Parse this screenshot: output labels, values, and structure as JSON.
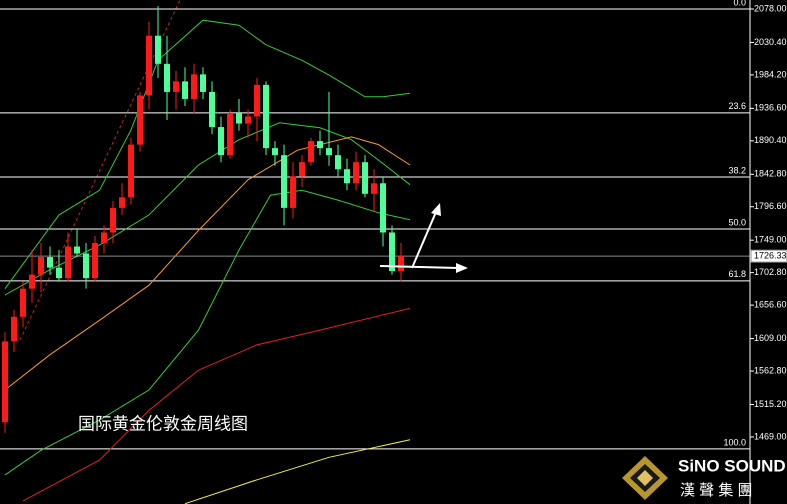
{
  "chart_data": {
    "type": "candlestick",
    "title": "国际黄金伦敦金周线图",
    "ylim": [
      1373.6,
      2090.8
    ],
    "yticks": [
      {
        "value": 2078,
        "label": "2078.00"
      },
      {
        "value": 2030.4,
        "label": "2030.40"
      },
      {
        "value": 1984.2,
        "label": "1984.20"
      },
      {
        "value": 1936.6,
        "label": "1936.60"
      },
      {
        "value": 1890.4,
        "label": "1890.40"
      },
      {
        "value": 1842.8,
        "label": "1842.80"
      },
      {
        "value": 1796.6,
        "label": "1796.60"
      },
      {
        "value": 1749,
        "label": "1749.00"
      },
      {
        "value": 1702.8,
        "label": "1702.80"
      },
      {
        "value": 1656.6,
        "label": "1656.60"
      },
      {
        "value": 1609,
        "label": "1609.00"
      },
      {
        "value": 1562.8,
        "label": "1562.80"
      },
      {
        "value": 1515.2,
        "label": "1515.20"
      },
      {
        "value": 1469,
        "label": "1469.00"
      }
    ],
    "up_color": "#ff1a1a",
    "down_color": "#4dff99",
    "open": [
      1490,
      1605,
      1640,
      1680,
      1700,
      1725,
      1710,
      1695,
      1740,
      1730,
      1695,
      1745,
      1760,
      1795,
      1810,
      1885,
      1955,
      2040,
      2000,
      1960,
      1975,
      1950,
      1985,
      1960,
      1910,
      1870,
      1930,
      1915,
      1925,
      1970,
      1880,
      1870,
      1795,
      1840,
      1860,
      1890,
      1880,
      1870,
      1850,
      1830,
      1860,
      1815,
      1830,
      1760,
      1705
    ],
    "high": [
      1618,
      1650,
      1690,
      1735,
      1745,
      1740,
      1735,
      1760,
      1765,
      1745,
      1755,
      1770,
      1805,
      1830,
      1895,
      1960,
      2060,
      2082,
      2040,
      1990,
      1995,
      2000,
      1995,
      1975,
      1925,
      1935,
      1950,
      1935,
      1980,
      1975,
      1890,
      1885,
      1860,
      1870,
      1895,
      1905,
      1960,
      1885,
      1865,
      1875,
      1870,
      1850,
      1840,
      1770,
      1745
    ],
    "low": [
      1475,
      1590,
      1625,
      1660,
      1675,
      1700,
      1690,
      1690,
      1725,
      1680,
      1690,
      1730,
      1745,
      1785,
      1800,
      1875,
      1935,
      1980,
      1920,
      1935,
      1940,
      1930,
      1950,
      1900,
      1860,
      1865,
      1905,
      1895,
      1890,
      1870,
      1855,
      1770,
      1780,
      1825,
      1855,
      1870,
      1855,
      1840,
      1820,
      1820,
      1810,
      1790,
      1740,
      1700,
      1690
    ],
    "close": [
      1605,
      1640,
      1680,
      1700,
      1725,
      1710,
      1695,
      1740,
      1730,
      1695,
      1745,
      1760,
      1795,
      1810,
      1885,
      1955,
      2040,
      2000,
      1960,
      1975,
      1950,
      1985,
      1960,
      1910,
      1870,
      1930,
      1915,
      1925,
      1970,
      1880,
      1870,
      1795,
      1840,
      1860,
      1890,
      1880,
      1870,
      1850,
      1830,
      1860,
      1815,
      1830,
      1760,
      1705,
      1726.33
    ],
    "last_price": 1726.33,
    "lines": [
      {
        "color": "#33cc33",
        "x": [
          0,
          6,
          10.5,
          14,
          17,
          22,
          26,
          29,
          33,
          36,
          40,
          42,
          45
        ],
        "values": [
          1680,
          1785,
          1820,
          1906,
          2005,
          2062,
          2055,
          2027,
          2005,
          1984,
          1953,
          1953,
          1958
        ]
      },
      {
        "color": "#33cc33",
        "x": [
          0,
          5,
          10.5,
          16,
          21.5,
          26,
          30.5,
          35,
          38.5,
          41.5,
          45
        ],
        "values": [
          1671,
          1707,
          1742,
          1785,
          1856,
          1892,
          1916,
          1909,
          1892,
          1863,
          1828
        ]
      },
      {
        "color": "#33cc33",
        "x": [
          0,
          4,
          10.5,
          16,
          21.5,
          26,
          29.5,
          33,
          37,
          41.5,
          45
        ],
        "values": [
          1415,
          1450,
          1493,
          1536,
          1621,
          1735,
          1813,
          1820,
          1806,
          1788,
          1778
        ]
      },
      {
        "color": "#ff9922",
        "x": [
          0,
          5,
          10.5,
          16,
          21.5,
          27,
          32.5,
          38.5,
          41.5,
          45
        ],
        "values": [
          1536,
          1586,
          1635,
          1685,
          1763,
          1835,
          1877,
          1896,
          1885,
          1856
        ]
      },
      {
        "color": "#e02020",
        "x": [
          2,
          10.5,
          16,
          21.5,
          28,
          35,
          45
        ],
        "values": [
          1378,
          1436,
          1507,
          1564,
          1600,
          1621,
          1652
        ]
      },
      {
        "color": "#f0f040",
        "x": [
          20,
          28,
          36,
          45
        ],
        "values": [
          1374,
          1408,
          1440,
          1465
        ]
      }
    ],
    "fib": {
      "high": 2078,
      "low": 1452,
      "levels": [
        {
          "value": 0,
          "label": "0.0"
        },
        23.6,
        38.2,
        {
          "value": 50,
          "label": "50.0"
        },
        61.8,
        {
          "value": 100,
          "label": "100.0"
        }
      ]
    }
  },
  "logo": {
    "name": "SiNO SOUND",
    "subname": "漢 聲 集 團"
  }
}
